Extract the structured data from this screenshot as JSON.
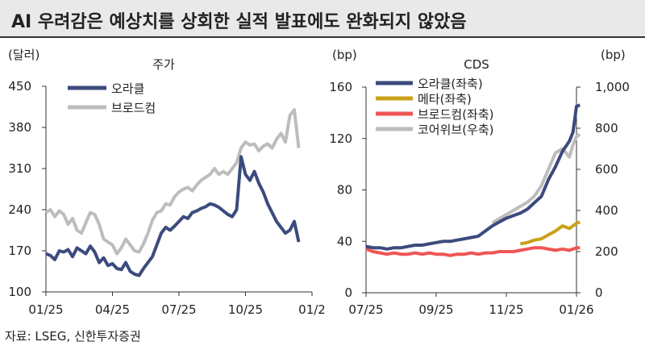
{
  "title": "AI 우려감은 예상치를 상회한 실적 발표에도 완화되지 않았음",
  "source": "자료: LSEG, 신한투자증권",
  "colors": {
    "navy": "#3c4b7d",
    "gray": "#bdbdbd",
    "gold": "#c9a11a",
    "red": "#ef5656"
  },
  "chart_data": [
    {
      "type": "line",
      "title": "주가",
      "ylabel": "(달러)",
      "ylim": [
        100,
        450
      ],
      "yticks": [
        "100",
        "170",
        "240",
        "310",
        "380",
        "450"
      ],
      "yticks_values": [
        100,
        170,
        240,
        310,
        380,
        450
      ],
      "xticks": [
        "01/25",
        "04/25",
        "07/25",
        "10/25",
        "01/2"
      ],
      "xrange": [
        0,
        12
      ],
      "xticks_positions": [
        0,
        3,
        6,
        9,
        12
      ],
      "grid": false,
      "legend": "top-left",
      "series": [
        {
          "name": "오라클",
          "color": "navy",
          "x": [
            0,
            0.2,
            0.4,
            0.6,
            0.8,
            1.0,
            1.2,
            1.4,
            1.6,
            1.8,
            2.0,
            2.2,
            2.4,
            2.6,
            2.8,
            3.0,
            3.2,
            3.4,
            3.6,
            3.8,
            4.0,
            4.2,
            4.4,
            4.6,
            4.8,
            5.0,
            5.2,
            5.4,
            5.6,
            5.8,
            6.0,
            6.2,
            6.4,
            6.6,
            6.8,
            7.0,
            7.2,
            7.4,
            7.6,
            7.8,
            8.0,
            8.2,
            8.4,
            8.6,
            8.8,
            9.0,
            9.2,
            9.4,
            9.6,
            9.8,
            10.0,
            10.2,
            10.4,
            10.6,
            10.8,
            11.0,
            11.2,
            11.4
          ],
          "values": [
            165,
            162,
            155,
            170,
            168,
            172,
            160,
            175,
            170,
            165,
            178,
            168,
            150,
            158,
            145,
            148,
            140,
            138,
            150,
            135,
            130,
            128,
            140,
            150,
            160,
            180,
            200,
            210,
            205,
            212,
            220,
            228,
            225,
            235,
            238,
            242,
            245,
            250,
            248,
            244,
            238,
            232,
            228,
            240,
            330,
            300,
            290,
            305,
            285,
            270,
            250,
            235,
            220,
            210,
            200,
            205,
            220,
            185
          ]
        },
        {
          "name": "브로드컴",
          "color": "gray",
          "x": [
            0,
            0.2,
            0.4,
            0.6,
            0.8,
            1.0,
            1.2,
            1.4,
            1.6,
            1.8,
            2.0,
            2.2,
            2.4,
            2.6,
            2.8,
            3.0,
            3.2,
            3.4,
            3.6,
            3.8,
            4.0,
            4.2,
            4.4,
            4.6,
            4.8,
            5.0,
            5.2,
            5.4,
            5.6,
            5.8,
            6.0,
            6.2,
            6.4,
            6.6,
            6.8,
            7.0,
            7.2,
            7.4,
            7.6,
            7.8,
            8.0,
            8.2,
            8.4,
            8.6,
            8.8,
            9.0,
            9.2,
            9.4,
            9.6,
            9.8,
            10.0,
            10.2,
            10.4,
            10.6,
            10.8,
            11.0,
            11.2,
            11.4
          ],
          "values": [
            235,
            240,
            228,
            238,
            232,
            215,
            225,
            205,
            200,
            218,
            235,
            232,
            215,
            190,
            185,
            180,
            165,
            175,
            190,
            180,
            170,
            168,
            182,
            200,
            222,
            235,
            238,
            250,
            248,
            262,
            270,
            275,
            278,
            272,
            282,
            290,
            295,
            300,
            310,
            300,
            305,
            300,
            310,
            320,
            345,
            355,
            350,
            352,
            340,
            348,
            352,
            345,
            360,
            370,
            355,
            400,
            410,
            345
          ]
        }
      ]
    },
    {
      "type": "line",
      "title": "CDS",
      "ylabel": "(bp)",
      "ylabel_right": "(bp)",
      "ylim": [
        0,
        160
      ],
      "ylim_right": [
        0,
        1000
      ],
      "yticks": [
        "0",
        "40",
        "80",
        "120",
        "160"
      ],
      "yticks_values": [
        0,
        40,
        80,
        120,
        160
      ],
      "yticks_right": [
        "0",
        "200",
        "400",
        "600",
        "800",
        "1,000"
      ],
      "yticks_right_values": [
        0,
        200,
        400,
        600,
        800,
        1000
      ],
      "xticks": [
        "07/25",
        "09/25",
        "11/25",
        "01/26"
      ],
      "xrange": [
        0,
        6
      ],
      "xticks_positions": [
        0,
        2,
        4,
        6
      ],
      "grid": false,
      "legend": "top-left",
      "series": [
        {
          "name": "오라클(좌축)",
          "color": "navy",
          "axis": "left",
          "x": [
            0,
            0.2,
            0.4,
            0.6,
            0.8,
            1.0,
            1.2,
            1.4,
            1.6,
            1.8,
            2.0,
            2.2,
            2.4,
            2.6,
            2.8,
            3.0,
            3.2,
            3.4,
            3.6,
            3.8,
            4.0,
            4.2,
            4.4,
            4.6,
            4.8,
            5.0,
            5.2,
            5.4,
            5.6,
            5.8,
            5.9,
            6.0,
            6.1
          ],
          "values": [
            36,
            35,
            35,
            34,
            35,
            35,
            36,
            37,
            37,
            38,
            39,
            40,
            40,
            41,
            42,
            43,
            44,
            48,
            52,
            55,
            58,
            60,
            62,
            65,
            70,
            75,
            88,
            98,
            110,
            118,
            125,
            145,
            146
          ]
        },
        {
          "name": "메타(좌축)",
          "color": "gold",
          "axis": "left",
          "x": [
            4.4,
            4.6,
            4.8,
            5.0,
            5.2,
            5.4,
            5.6,
            5.8,
            6.0,
            6.1
          ],
          "values": [
            38,
            39,
            41,
            42,
            45,
            48,
            52,
            50,
            54,
            55
          ]
        },
        {
          "name": "브로드컴(좌축)",
          "color": "red",
          "axis": "left",
          "x": [
            0,
            0.2,
            0.4,
            0.6,
            0.8,
            1.0,
            1.2,
            1.4,
            1.6,
            1.8,
            2.0,
            2.2,
            2.4,
            2.6,
            2.8,
            3.0,
            3.2,
            3.4,
            3.6,
            3.8,
            4.0,
            4.2,
            4.4,
            4.6,
            4.8,
            5.0,
            5.2,
            5.4,
            5.6,
            5.8,
            6.0,
            6.1
          ],
          "values": [
            34,
            32,
            31,
            30,
            31,
            30,
            30,
            31,
            30,
            31,
            30,
            30,
            29,
            30,
            30,
            31,
            30,
            31,
            31,
            32,
            32,
            32,
            33,
            34,
            35,
            35,
            34,
            33,
            34,
            33,
            35,
            35
          ]
        },
        {
          "name": "코어위브(우축)",
          "color": "gray",
          "axis": "right",
          "x": [
            3.6,
            3.8,
            4.0,
            4.2,
            4.4,
            4.6,
            4.8,
            5.0,
            5.2,
            5.4,
            5.6,
            5.8,
            5.9,
            6.0,
            6.1
          ],
          "values": [
            340,
            360,
            380,
            400,
            420,
            440,
            470,
            520,
            600,
            680,
            700,
            660,
            720,
            760,
            770
          ]
        }
      ]
    }
  ]
}
